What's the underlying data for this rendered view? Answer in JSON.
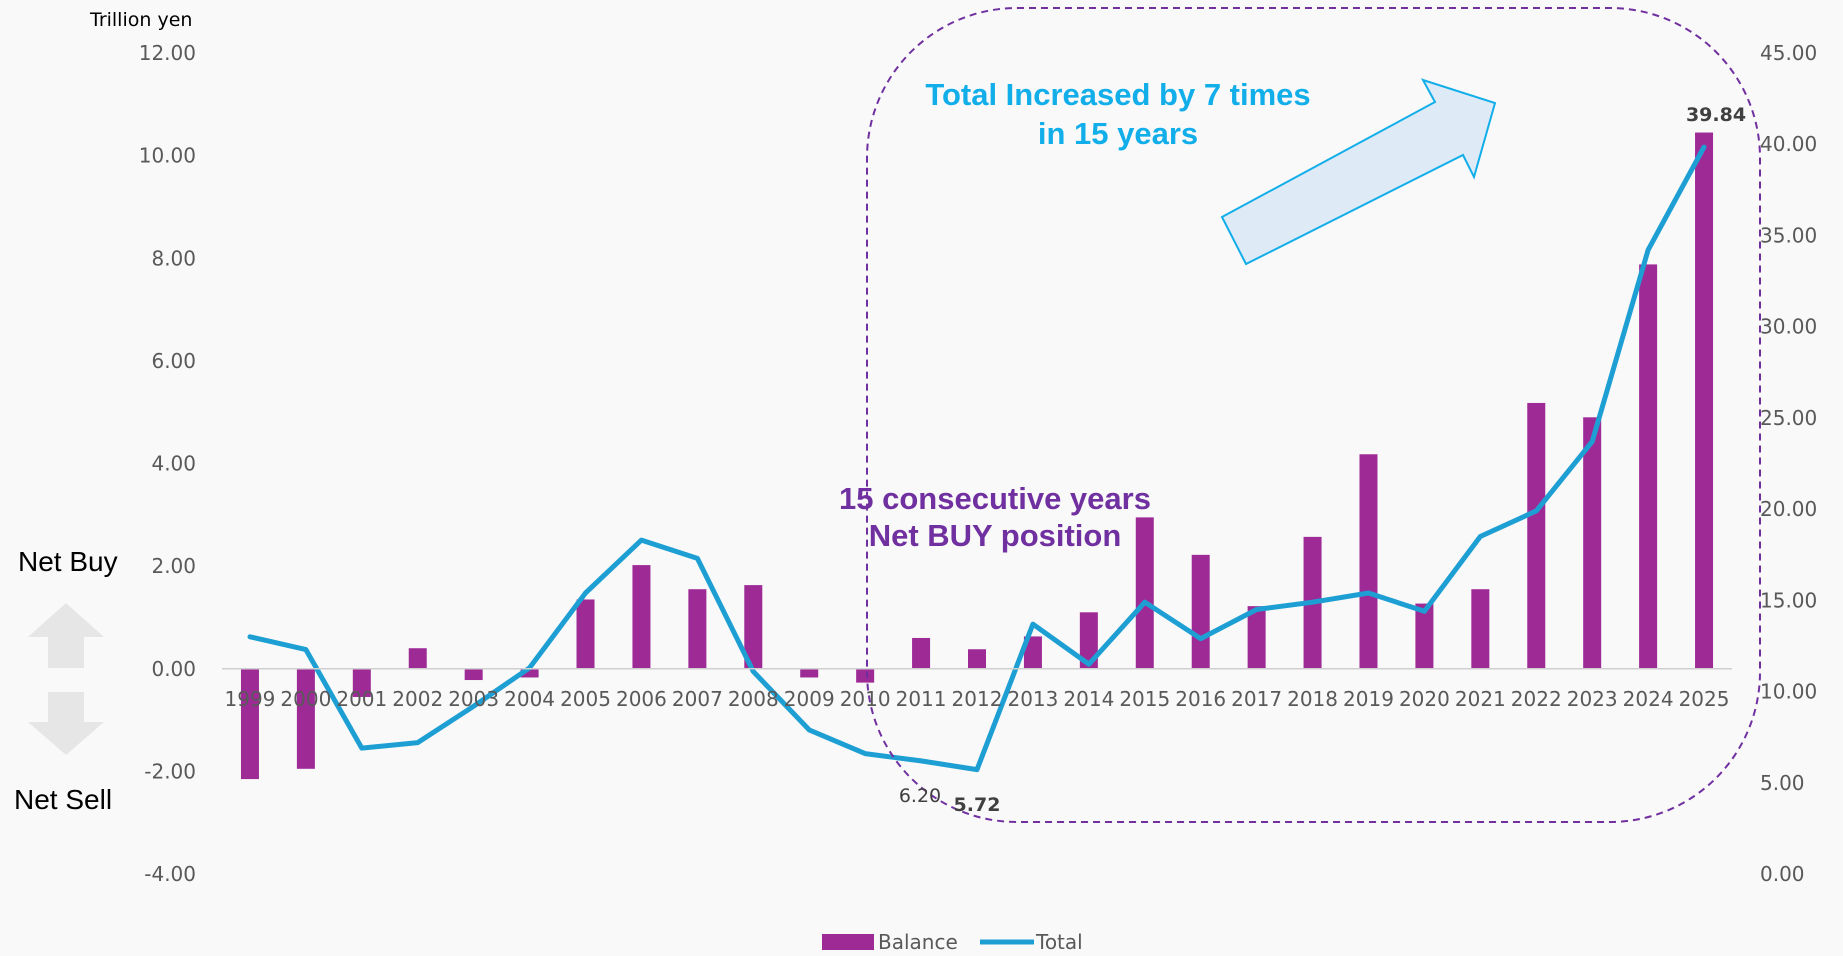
{
  "chart_data": {
    "type": "bar+line",
    "categories": [
      "1999",
      "2000",
      "2001",
      "2002",
      "2003",
      "2004",
      "2005",
      "2006",
      "2007",
      "2008",
      "2009",
      "2010",
      "2011",
      "2012",
      "2013",
      "2014",
      "2015",
      "2016",
      "2017",
      "2018",
      "2019",
      "2020",
      "2021",
      "2022",
      "2023",
      "2024",
      "2025"
    ],
    "series": [
      {
        "name": "Balance",
        "type": "bar",
        "axis": "left",
        "color": "#9e2a96",
        "values": [
          -2.15,
          -1.95,
          -0.55,
          0.4,
          -0.22,
          -0.17,
          1.35,
          2.02,
          1.55,
          1.63,
          -0.17,
          -0.27,
          0.6,
          0.38,
          0.63,
          1.1,
          2.95,
          2.22,
          1.22,
          2.57,
          4.18,
          1.27,
          1.55,
          5.18,
          4.9,
          7.88,
          10.45
        ]
      },
      {
        "name": "Total",
        "type": "line",
        "axis": "right",
        "color": "#1e9fd4",
        "values": [
          13.0,
          12.3,
          6.9,
          7.2,
          9.2,
          11.3,
          15.4,
          18.3,
          17.3,
          11.1,
          7.9,
          6.6,
          6.2,
          5.72,
          13.7,
          11.5,
          14.9,
          12.9,
          14.5,
          14.9,
          15.4,
          14.4,
          18.5,
          19.9,
          23.7,
          34.2,
          39.84
        ]
      }
    ],
    "yleft": {
      "unit_label": "Trillion yen",
      "min": -4,
      "max": 12,
      "ticks": [
        "12.00",
        "10.00",
        "8.00",
        "6.00",
        "4.00",
        "2.00",
        "0.00",
        "-2.00",
        "-4.00"
      ]
    },
    "yright": {
      "min": 0,
      "max": 45,
      "ticks": [
        "45.00",
        "40.00",
        "35.00",
        "30.00",
        "25.00",
        "20.00",
        "15.00",
        "10.00",
        "5.00",
        "0.00"
      ]
    },
    "data_labels": {
      "2011": "6.20",
      "2012": "5.72",
      "2025": "39.84"
    },
    "side_labels": {
      "buy": "Net Buy",
      "sell": "Net Sell"
    },
    "annotations": {
      "growth_line1": "Total Increased by 7 times",
      "growth_line2": "in 15 years",
      "streak_line1": "15 consecutive years",
      "streak_line2": "Net BUY position"
    },
    "highlight_range": [
      "2010",
      "2025"
    ],
    "legend": {
      "position": "bottom",
      "entries": [
        "Balance",
        "Total"
      ]
    }
  }
}
